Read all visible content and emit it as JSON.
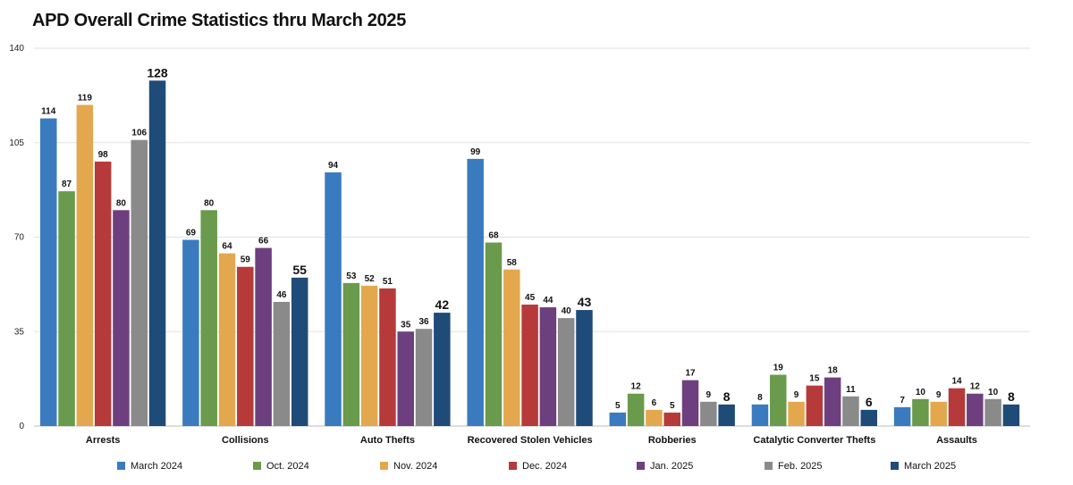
{
  "chart_data": {
    "type": "bar",
    "title": "APD Overall Crime Statistics thru March 2025",
    "xlabel": "",
    "ylabel": "",
    "ylim": [
      0,
      140
    ],
    "yticks": [
      0,
      35,
      70,
      105,
      140
    ],
    "grid": true,
    "legend_position": "bottom",
    "categories": [
      "Arrests",
      "Collisions",
      "Auto Thefts",
      "Recovered Stolen Vehicles",
      "Robberies",
      "Catalytic Converter Thefts",
      "Assaults"
    ],
    "series": [
      {
        "name": "March 2024",
        "color": "#3a7bbf",
        "values": [
          114,
          69,
          94,
          99,
          5,
          8,
          7
        ]
      },
      {
        "name": "Oct. 2024",
        "color": "#6a9a4c",
        "values": [
          87,
          80,
          53,
          68,
          12,
          19,
          10
        ]
      },
      {
        "name": "Nov. 2024",
        "color": "#e3a84e",
        "values": [
          119,
          64,
          52,
          58,
          6,
          9,
          9
        ]
      },
      {
        "name": "Dec. 2024",
        "color": "#b63a3a",
        "values": [
          98,
          59,
          51,
          45,
          5,
          15,
          14
        ]
      },
      {
        "name": "Jan. 2025",
        "color": "#6e3f7e",
        "values": [
          80,
          66,
          35,
          44,
          17,
          18,
          12
        ]
      },
      {
        "name": "Feb. 2025",
        "color": "#8a8a8a",
        "values": [
          106,
          46,
          36,
          40,
          9,
          11,
          10
        ]
      },
      {
        "name": "March 2025",
        "color": "#1f4b78",
        "values": [
          128,
          55,
          42,
          43,
          8,
          6,
          8
        ]
      }
    ]
  }
}
